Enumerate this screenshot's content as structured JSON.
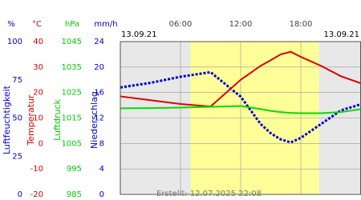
{
  "chart_data": {
    "type": "line",
    "date_left": "13.09.21",
    "date_right": "13.09.21",
    "footer": "Erstellt: 12.07.2025 22:08",
    "xlim": [
      0,
      24
    ],
    "xticks": [
      {
        "value": 6,
        "label": "06:00"
      },
      {
        "value": 12,
        "label": "12:00"
      },
      {
        "value": 18,
        "label": "18:00"
      }
    ],
    "daylight": [
      7,
      19.8
    ],
    "grid": true,
    "axes": [
      {
        "unit": "%",
        "label": "Luftfeuchtigkeit",
        "color": "#0000cc",
        "lim": [
          0,
          100
        ],
        "ticks": [
          0,
          25,
          50,
          75,
          100
        ]
      },
      {
        "unit": "°C",
        "label": "Temperatur",
        "color": "#dd0000",
        "lim": [
          -20,
          40
        ],
        "ticks": [
          -20,
          -10,
          0,
          10,
          20,
          30,
          40
        ]
      },
      {
        "unit": "hPa",
        "label": "Luftdruck",
        "color": "#00cc00",
        "lim": [
          985,
          1045
        ],
        "ticks": [
          985,
          995,
          1005,
          1015,
          1025,
          1035,
          1045
        ]
      },
      {
        "unit": "mm/h",
        "label": "Niederschlag",
        "color": "#0000cc",
        "lim": [
          0,
          24
        ],
        "ticks": [
          0,
          4,
          8,
          12,
          16,
          20,
          24
        ]
      }
    ],
    "x": [
      0,
      3,
      6,
      9,
      12,
      14,
      15,
      16,
      17,
      18,
      20,
      22,
      24
    ],
    "series": [
      {
        "name": "Luftfeuchtigkeit",
        "axis": 0,
        "color": "#0000cc",
        "values": [
          70,
          73,
          77,
          80,
          64,
          46,
          40,
          36,
          34,
          37,
          46,
          55,
          59
        ]
      },
      {
        "name": "Temperatur",
        "axis": 1,
        "color": "#dd0000",
        "values": [
          18.5,
          17,
          15.5,
          14.5,
          25,
          30.5,
          32.7,
          35,
          36,
          34,
          30.5,
          26.4,
          23.6
        ]
      },
      {
        "name": "Luftdruck",
        "axis": 2,
        "color": "#00dd00",
        "values": [
          1018.8,
          1018.9,
          1019.1,
          1019.4,
          1019.7,
          1018.5,
          1017.8,
          1017.3,
          1017,
          1016.9,
          1016.9,
          1017.3,
          1018.5
        ]
      }
    ]
  }
}
